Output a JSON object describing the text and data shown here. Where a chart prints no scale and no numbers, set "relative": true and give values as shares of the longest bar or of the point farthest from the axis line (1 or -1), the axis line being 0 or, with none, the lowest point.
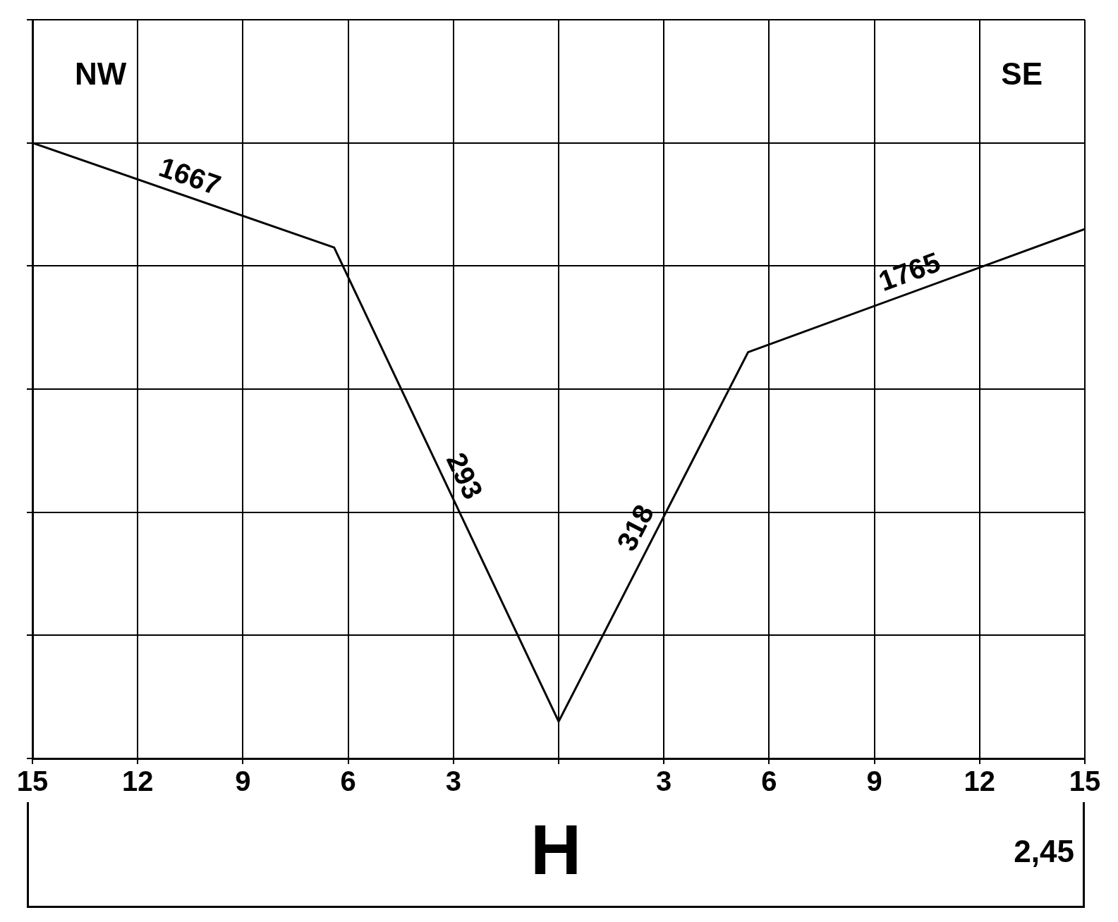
{
  "chart_data": {
    "type": "line",
    "relative": true,
    "x": [
      -15,
      -6.4,
      0,
      5.4,
      15
    ],
    "series": [
      {
        "color": "#000000",
        "values": [
          1,
          0.83,
          0.06,
          0.66,
          0.86
        ]
      }
    ],
    "xlim": [
      -15,
      15
    ],
    "xticks": [
      {
        "value": -15,
        "label": "15"
      },
      {
        "value": -12,
        "label": "12"
      },
      {
        "value": -9,
        "label": "9"
      },
      {
        "value": -6,
        "label": "6"
      },
      {
        "value": -3,
        "label": "3"
      },
      {
        "value": 0,
        "label": null
      },
      {
        "value": 3,
        "label": "3"
      },
      {
        "value": 6,
        "label": "6"
      },
      {
        "value": 9,
        "label": "9"
      },
      {
        "value": 12,
        "label": "12"
      },
      {
        "value": 15,
        "label": "15"
      }
    ],
    "grid": true,
    "legend": false,
    "marker": "none",
    "line_style": "solid",
    "annotations": [
      "NW",
      "SE",
      "H",
      "2,45",
      "1667",
      "293",
      "318",
      "1765"
    ]
  }
}
